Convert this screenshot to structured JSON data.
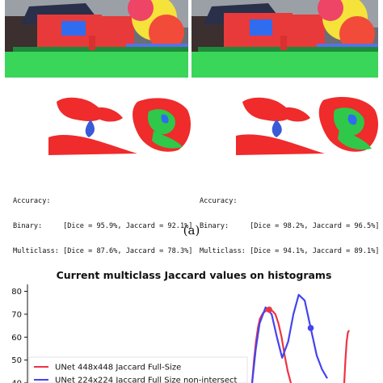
{
  "figure_a": {
    "left": {
      "accuracy_label": "Accuracy:",
      "binary": "Binary:     [Dice = 95.9%, Jaccard = 92.1%]",
      "multiclass": "Multiclass: [Dice = 87.6%, Jaccard = 78.3%]"
    },
    "right": {
      "accuracy_label": "Accuracy:",
      "binary": "Binary:     [Dice = 98.2%, Jaccard = 96.5%]",
      "multiclass": "Multiclass: [Dice = 94.1%, Jaccard = 89.1%]"
    },
    "caption": "(a)"
  },
  "chart_data": {
    "type": "line",
    "title": "Current multiclass Jaccard values on histograms",
    "xlabel": "",
    "ylabel": "",
    "ylim": [
      40,
      83
    ],
    "yticks": [
      "80",
      "70",
      "60",
      "50",
      "40"
    ],
    "grid": false,
    "legend_placement": "bottom-left",
    "series": [
      {
        "name": "UNet 448x448 Jaccard Full-Size",
        "color": "#ee3344",
        "x": [
          0.0,
          0.05,
          0.1,
          0.15,
          0.2,
          0.28,
          0.36,
          0.44,
          0.52,
          0.6,
          0.68,
          0.76,
          0.84,
          0.92,
          1.0
        ],
        "y": [
          40,
          50,
          58,
          64,
          68,
          70.5,
          71.5,
          72,
          71.5,
          70,
          66,
          60,
          52,
          45,
          40
        ]
      },
      {
        "name": "UNet 224x224 Jaccard Full Size non-intersect",
        "color": "#4444ee",
        "x": [
          0.0,
          0.05,
          0.1,
          0.18,
          0.26,
          0.33,
          0.4,
          0.48,
          0.55,
          0.62,
          0.7,
          0.78,
          0.86,
          0.93,
          1.0
        ],
        "y": [
          40,
          55,
          66,
          73,
          70,
          60,
          51,
          58,
          70,
          78.5,
          76,
          64,
          52,
          46,
          42
        ]
      },
      {
        "name": "",
        "color": "#ee3344",
        "x": [
          0,
          0.25,
          0.5,
          0.75,
          1.0
        ],
        "y": [
          40,
          50,
          58,
          62,
          63
        ]
      }
    ]
  }
}
